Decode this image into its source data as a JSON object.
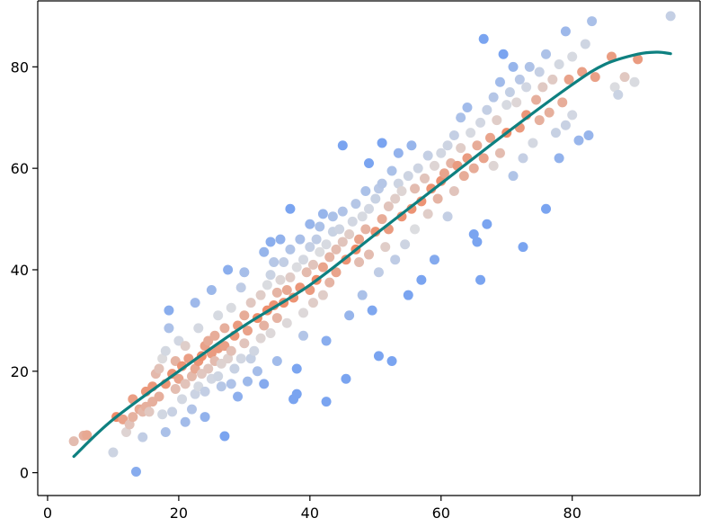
{
  "chart_data": {
    "type": "scatter",
    "title": "",
    "xlabel": "",
    "ylabel": "",
    "xlim": [
      -1.5,
      99.5
    ],
    "ylim": [
      -4.5,
      93
    ],
    "x_ticks": [
      0,
      20,
      40,
      60,
      80
    ],
    "y_ticks": [
      0,
      20,
      40,
      60,
      80
    ],
    "x_tick_labels": [
      "0",
      "20",
      "40",
      "60",
      "80"
    ],
    "y_tick_labels": [
      "0",
      "20",
      "40",
      "60",
      "80"
    ],
    "grid": false,
    "legend": "none",
    "point_colormap": {
      "low": "#7aa4f0",
      "mid": "#dcdde0",
      "high": "#ee8b68",
      "description": "points colored by closeness to trend line (coolwarm)"
    },
    "series": [
      {
        "kind": "scatter",
        "points": [
          [
            4,
            6.2
          ],
          [
            5.5,
            7.3
          ],
          [
            6,
            7.4
          ],
          [
            10,
            4
          ],
          [
            10.5,
            11
          ],
          [
            11.5,
            10.5
          ],
          [
            12,
            8
          ],
          [
            12.5,
            9.5
          ],
          [
            13,
            11
          ],
          [
            13,
            14.5
          ],
          [
            13.5,
            0.2
          ],
          [
            14,
            12.5
          ],
          [
            14.5,
            7
          ],
          [
            14.5,
            12
          ],
          [
            15,
            13
          ],
          [
            15,
            16
          ],
          [
            15.5,
            12
          ],
          [
            16,
            14
          ],
          [
            16,
            17
          ],
          [
            16.5,
            19.5
          ],
          [
            17,
            15
          ],
          [
            17,
            20.5
          ],
          [
            17.5,
            11.5
          ],
          [
            17.5,
            22.5
          ],
          [
            18,
            8
          ],
          [
            18,
            17.5
          ],
          [
            18,
            24
          ],
          [
            18.5,
            28.5
          ],
          [
            18.5,
            32
          ],
          [
            19,
            12
          ],
          [
            19,
            19.5
          ],
          [
            19.5,
            16.5
          ],
          [
            19.5,
            22
          ],
          [
            20,
            18.5
          ],
          [
            20,
            26
          ],
          [
            20.5,
            14.5
          ],
          [
            20.5,
            21
          ],
          [
            21,
            10
          ],
          [
            21,
            17.5
          ],
          [
            21,
            25
          ],
          [
            21.5,
            22.5
          ],
          [
            22,
            19
          ],
          [
            22,
            12.5
          ],
          [
            22.5,
            15.5
          ],
          [
            22.5,
            20.5
          ],
          [
            22.5,
            33.5
          ],
          [
            23,
            22
          ],
          [
            23,
            17
          ],
          [
            23,
            28.5
          ],
          [
            23.5,
            19.5
          ],
          [
            23.5,
            23
          ],
          [
            24,
            11
          ],
          [
            24,
            25
          ],
          [
            24,
            16
          ],
          [
            24.5,
            20.5
          ],
          [
            24.5,
            26
          ],
          [
            25,
            18.5
          ],
          [
            25,
            23.5
          ],
          [
            25,
            36
          ],
          [
            25.5,
            22
          ],
          [
            25.5,
            27
          ],
          [
            26,
            19
          ],
          [
            26,
            24.5
          ],
          [
            26,
            31
          ],
          [
            26.5,
            21.5
          ],
          [
            26.5,
            17
          ],
          [
            27,
            25
          ],
          [
            27,
            7.2
          ],
          [
            27,
            28.5
          ],
          [
            27.5,
            22.5
          ],
          [
            27.5,
            40
          ],
          [
            28,
            24
          ],
          [
            28,
            32.5
          ],
          [
            28,
            17.5
          ],
          [
            28.5,
            27
          ],
          [
            28.5,
            20.5
          ],
          [
            29,
            29
          ],
          [
            29,
            15
          ],
          [
            29.5,
            22.5
          ],
          [
            29.5,
            36.5
          ],
          [
            30,
            25.5
          ],
          [
            30,
            31
          ],
          [
            30,
            39.5
          ],
          [
            30.5,
            18
          ],
          [
            30.5,
            28
          ],
          [
            31,
            22.5
          ],
          [
            31,
            33.5
          ],
          [
            31.5,
            24
          ],
          [
            32,
            30.5
          ],
          [
            32,
            20
          ],
          [
            32.5,
            35
          ],
          [
            32.5,
            26.5
          ],
          [
            33,
            29
          ],
          [
            33,
            43.5
          ],
          [
            33,
            17.5
          ],
          [
            33.5,
            32
          ],
          [
            33.5,
            37
          ],
          [
            34,
            39
          ],
          [
            34,
            27.5
          ],
          [
            34,
            45.5
          ],
          [
            34.5,
            33
          ],
          [
            34.5,
            41.5
          ],
          [
            35,
            30.5
          ],
          [
            35,
            35.5
          ],
          [
            35,
            22
          ],
          [
            35.5,
            38
          ],
          [
            35.5,
            46
          ],
          [
            36,
            33.5
          ],
          [
            36,
            41.5
          ],
          [
            36.5,
            36
          ],
          [
            36.5,
            29.5
          ],
          [
            37,
            44
          ],
          [
            37,
            52
          ],
          [
            37,
            38.5
          ],
          [
            37.5,
            14.5
          ],
          [
            37.5,
            34.5
          ],
          [
            38,
            40.5
          ],
          [
            38,
            20.5
          ],
          [
            38,
            15.5
          ],
          [
            38.5,
            36.5
          ],
          [
            38.5,
            46
          ],
          [
            39,
            42
          ],
          [
            39,
            31.5
          ],
          [
            39,
            27
          ],
          [
            39.5,
            39.5
          ],
          [
            40,
            44.5
          ],
          [
            40,
            36
          ],
          [
            40,
            49
          ],
          [
            40.5,
            33.5
          ],
          [
            40.5,
            41
          ],
          [
            41,
            46
          ],
          [
            41,
            38
          ],
          [
            41.5,
            43.5
          ],
          [
            41.5,
            48.5
          ],
          [
            42,
            35
          ],
          [
            42,
            40.5
          ],
          [
            42,
            51
          ],
          [
            42.5,
            45
          ],
          [
            42.5,
            26
          ],
          [
            42.5,
            14
          ],
          [
            43,
            42.5
          ],
          [
            43,
            37.5
          ],
          [
            43.5,
            47.5
          ],
          [
            43.5,
            50.5
          ],
          [
            44,
            44
          ],
          [
            44,
            39.5
          ],
          [
            44.5,
            48
          ],
          [
            45,
            45.5
          ],
          [
            45,
            51.5
          ],
          [
            45,
            64.5
          ],
          [
            45.5,
            42
          ],
          [
            45.5,
            18.5
          ],
          [
            46,
            47
          ],
          [
            46,
            31
          ],
          [
            46.5,
            49.5
          ],
          [
            47,
            44
          ],
          [
            47,
            53
          ],
          [
            47.5,
            46
          ],
          [
            47.5,
            41.5
          ],
          [
            48,
            50.5
          ],
          [
            48,
            35
          ],
          [
            48.5,
            55.5
          ],
          [
            48.5,
            48
          ],
          [
            49,
            43
          ],
          [
            49,
            52
          ],
          [
            49,
            61
          ],
          [
            49.5,
            32
          ],
          [
            50,
            47.5
          ],
          [
            50,
            54
          ],
          [
            50.5,
            56
          ],
          [
            50.5,
            23
          ],
          [
            50.5,
            39.5
          ],
          [
            51,
            50
          ],
          [
            51,
            57
          ],
          [
            51,
            65
          ],
          [
            51.5,
            44.5
          ],
          [
            52,
            52.5
          ],
          [
            52,
            48
          ],
          [
            52.5,
            59.5
          ],
          [
            52.5,
            22
          ],
          [
            53,
            54
          ],
          [
            53,
            42
          ],
          [
            53.5,
            57
          ],
          [
            53.5,
            63
          ],
          [
            54,
            50.5
          ],
          [
            54,
            55.5
          ],
          [
            54.5,
            45
          ],
          [
            55,
            58.5
          ],
          [
            55,
            35
          ],
          [
            55.5,
            52
          ],
          [
            55.5,
            64.5
          ],
          [
            56,
            56
          ],
          [
            56,
            48
          ],
          [
            56.5,
            60
          ],
          [
            57,
            53.5
          ],
          [
            57,
            38
          ],
          [
            57.5,
            58
          ],
          [
            58,
            62.5
          ],
          [
            58,
            51
          ],
          [
            58.5,
            56
          ],
          [
            59,
            60.5
          ],
          [
            59,
            42
          ],
          [
            59.5,
            54
          ],
          [
            60,
            63
          ],
          [
            60,
            57.5
          ],
          [
            60.5,
            59
          ],
          [
            61,
            64.5
          ],
          [
            61,
            50.5
          ],
          [
            61.5,
            61
          ],
          [
            62,
            66.5
          ],
          [
            62,
            55.5
          ],
          [
            62.5,
            60.5
          ],
          [
            63,
            70
          ],
          [
            63,
            64
          ],
          [
            63.5,
            58.5
          ],
          [
            64,
            62
          ],
          [
            64,
            72
          ],
          [
            64.5,
            67
          ],
          [
            65,
            60
          ],
          [
            65,
            47
          ],
          [
            65.5,
            45.5
          ],
          [
            65.5,
            64.5
          ],
          [
            66,
            69
          ],
          [
            66,
            38
          ],
          [
            66.5,
            85.5
          ],
          [
            66.5,
            62
          ],
          [
            67,
            71.5
          ],
          [
            67,
            49
          ],
          [
            67.5,
            66
          ],
          [
            68,
            74
          ],
          [
            68,
            60.5
          ],
          [
            68.5,
            69.5
          ],
          [
            69,
            77
          ],
          [
            69,
            63
          ],
          [
            69.5,
            82.5
          ],
          [
            70,
            72.5
          ],
          [
            70,
            67
          ],
          [
            70.5,
            75
          ],
          [
            71,
            80
          ],
          [
            71,
            58.5
          ],
          [
            71.5,
            73
          ],
          [
            72,
            68
          ],
          [
            72,
            77.5
          ],
          [
            72.5,
            62
          ],
          [
            72.5,
            44.5
          ],
          [
            73,
            76
          ],
          [
            73,
            70.5
          ],
          [
            73.5,
            80
          ],
          [
            74,
            65
          ],
          [
            74.5,
            73.5
          ],
          [
            75,
            79
          ],
          [
            75,
            69.5
          ],
          [
            75.5,
            76
          ],
          [
            76,
            52
          ],
          [
            76,
            82.5
          ],
          [
            76.5,
            71
          ],
          [
            77,
            77.5
          ],
          [
            77.5,
            67
          ],
          [
            78,
            80.5
          ],
          [
            78,
            62
          ],
          [
            78.5,
            73
          ],
          [
            79,
            87
          ],
          [
            79,
            68.5
          ],
          [
            79.5,
            77.5
          ],
          [
            80,
            82
          ],
          [
            80,
            70.5
          ],
          [
            81,
            65.5
          ],
          [
            81.5,
            79
          ],
          [
            82,
            84.5
          ],
          [
            82.5,
            66.5
          ],
          [
            83,
            89
          ],
          [
            83.5,
            78
          ],
          [
            86,
            82
          ],
          [
            86.5,
            76
          ],
          [
            87,
            74.5
          ],
          [
            88,
            78
          ],
          [
            89.5,
            77
          ],
          [
            90,
            81.5
          ],
          [
            95,
            90
          ]
        ]
      },
      {
        "kind": "line",
        "name": "",
        "color": "#0e8080",
        "x": [
          4,
          10,
          20,
          30,
          40,
          50,
          60,
          70,
          80,
          85,
          90,
          93,
          95
        ],
        "y": [
          3.2,
          10.5,
          20,
          29,
          37,
          47,
          57,
          67,
          76.5,
          80.5,
          82.5,
          82.9,
          82.6
        ]
      }
    ]
  }
}
